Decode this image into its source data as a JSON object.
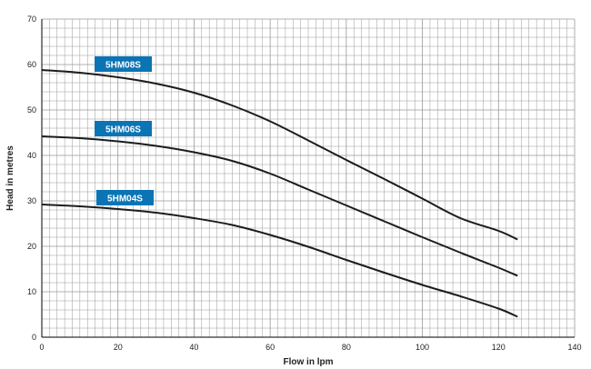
{
  "chart_data": {
    "type": "line",
    "title": "",
    "xlabel": "Flow in lpm",
    "ylabel": "Head in metres",
    "xlim": [
      0,
      140
    ],
    "ylim": [
      0,
      70
    ],
    "xticks": [
      "0",
      "20",
      "40",
      "60",
      "80",
      "100",
      "120",
      "140"
    ],
    "yticks": [
      "0",
      "10",
      "20",
      "30",
      "40",
      "50",
      "60",
      "70"
    ],
    "grid": true,
    "legend": "inline-labels",
    "colors": {
      "line": "#1c1c1c",
      "label_bg": "#0a74b5",
      "label_text": "#ffffff",
      "grid": "#999999",
      "axis": "#000000"
    },
    "series": [
      {
        "name": "5HM08S",
        "points": [
          [
            0,
            58.8
          ],
          [
            10,
            58.2
          ],
          [
            20,
            57.2
          ],
          [
            30,
            55.8
          ],
          [
            40,
            53.8
          ],
          [
            50,
            51.0
          ],
          [
            60,
            47.5
          ],
          [
            70,
            43.3
          ],
          [
            80,
            39.0
          ],
          [
            90,
            34.8
          ],
          [
            100,
            30.5
          ],
          [
            110,
            26.2
          ],
          [
            120,
            23.4
          ],
          [
            125,
            21.5
          ]
        ]
      },
      {
        "name": "5HM06S",
        "points": [
          [
            0,
            44.2
          ],
          [
            10,
            43.8
          ],
          [
            20,
            43.1
          ],
          [
            30,
            42.1
          ],
          [
            40,
            40.7
          ],
          [
            50,
            38.8
          ],
          [
            60,
            36.0
          ],
          [
            70,
            32.5
          ],
          [
            80,
            29.0
          ],
          [
            90,
            25.5
          ],
          [
            100,
            22.0
          ],
          [
            110,
            18.6
          ],
          [
            120,
            15.3
          ],
          [
            125,
            13.5
          ]
        ]
      },
      {
        "name": "5HM04S",
        "points": [
          [
            0,
            29.2
          ],
          [
            10,
            28.8
          ],
          [
            20,
            28.2
          ],
          [
            30,
            27.4
          ],
          [
            40,
            26.2
          ],
          [
            50,
            24.7
          ],
          [
            60,
            22.5
          ],
          [
            70,
            19.9
          ],
          [
            80,
            17.0
          ],
          [
            90,
            14.2
          ],
          [
            100,
            11.5
          ],
          [
            110,
            9.0
          ],
          [
            120,
            6.3
          ],
          [
            125,
            4.5
          ]
        ]
      }
    ]
  }
}
